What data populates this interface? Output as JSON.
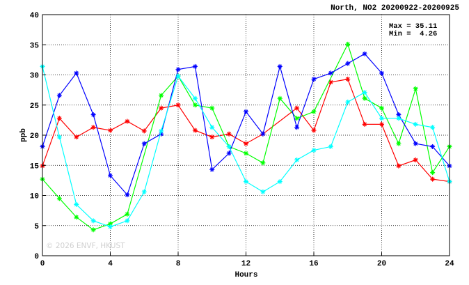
{
  "chart_data": {
    "type": "line",
    "title": "North, NO2 20200922-20200925",
    "xlabel": "Hours",
    "ylabel": "ppb",
    "xlim": [
      0,
      24
    ],
    "ylim": [
      0,
      40
    ],
    "x_ticks": [
      0,
      4,
      8,
      12,
      16,
      20,
      24
    ],
    "y_ticks": [
      0,
      5,
      10,
      15,
      20,
      25,
      30,
      35,
      40
    ],
    "grid": true,
    "stats": {
      "max_label": "Max = 35.11",
      "min_label": "Min =  4.26"
    },
    "watermark": "© 2026  ENVF, HKUST",
    "x": [
      0,
      1,
      2,
      3,
      4,
      5,
      6,
      7,
      8,
      9,
      10,
      11,
      12,
      13,
      14,
      15,
      16,
      17,
      18,
      19,
      20,
      21,
      22,
      23,
      24
    ],
    "series": [
      {
        "color": "#ff0000",
        "values": [
          14.9,
          22.8,
          19.7,
          21.3,
          20.8,
          22.3,
          20.7,
          24.5,
          25.0,
          20.8,
          19.7,
          20.2,
          18.6,
          20.2,
          null,
          24.5,
          20.8,
          28.8,
          29.3,
          21.8,
          21.8,
          14.9,
          15.9,
          12.7,
          12.3
        ]
      },
      {
        "color": "#00ff00",
        "values": [
          12.7,
          9.5,
          6.4,
          4.3,
          5.3,
          6.9,
          null,
          26.6,
          29.8,
          25.0,
          24.5,
          18.1,
          17.0,
          15.4,
          26.1,
          22.8,
          23.9,
          null,
          35.1,
          26.1,
          24.5,
          18.6,
          27.7,
          13.8,
          18.1
        ]
      },
      {
        "color": "#0000ff",
        "values": [
          18.1,
          26.6,
          30.3,
          23.4,
          13.3,
          10.1,
          18.6,
          20.2,
          30.9,
          31.4,
          14.3,
          17.0,
          23.9,
          20.2,
          31.4,
          21.3,
          29.3,
          30.3,
          31.9,
          33.5,
          30.3,
          23.4,
          18.6,
          18.1,
          14.9
        ]
      },
      {
        "color": "#00ffff",
        "values": [
          31.4,
          19.7,
          8.5,
          5.8,
          4.8,
          5.8,
          10.6,
          20.7,
          29.8,
          26.1,
          21.3,
          18.1,
          12.3,
          10.6,
          12.3,
          15.9,
          17.5,
          18.1,
          25.5,
          27.1,
          22.8,
          22.8,
          21.8,
          21.3,
          12.3
        ]
      }
    ]
  }
}
